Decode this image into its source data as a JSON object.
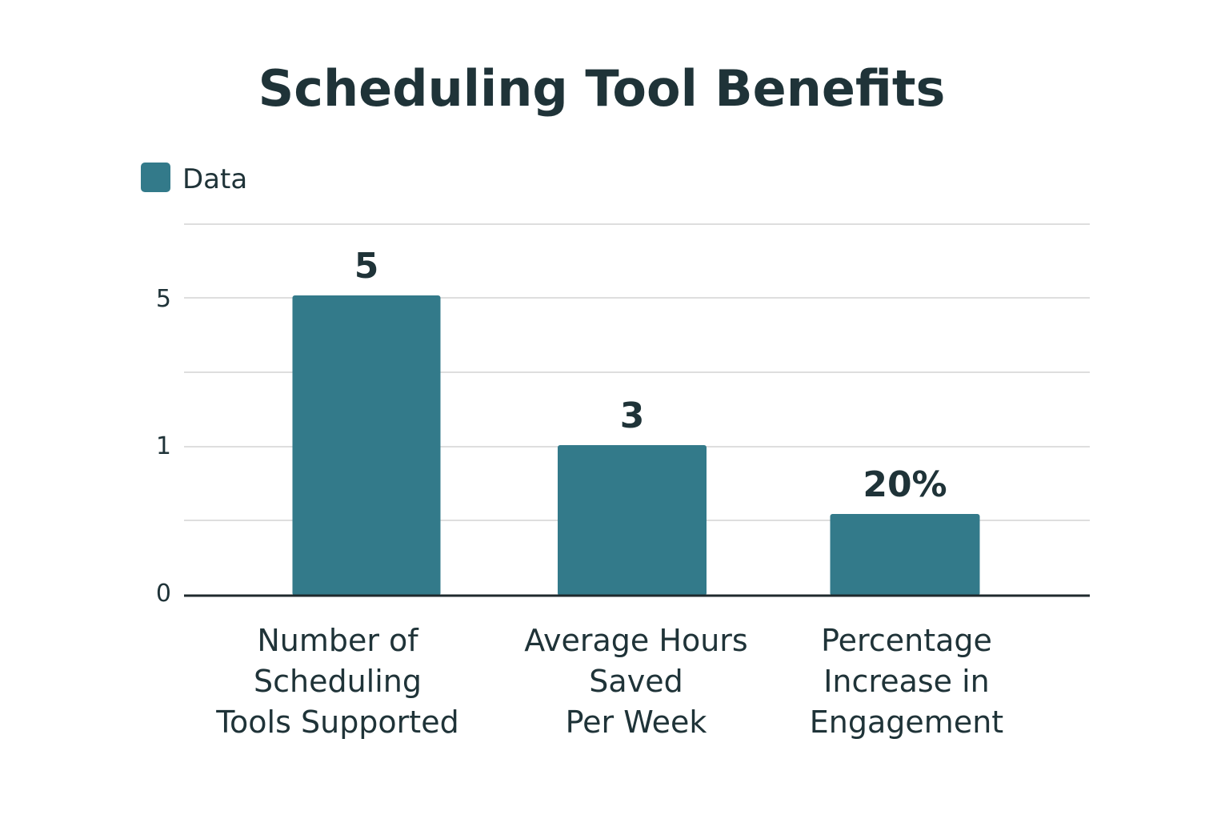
{
  "chart_data": {
    "type": "bar",
    "title": "Scheduling Tool Benefits",
    "xlabel": "",
    "ylabel": "",
    "legend": {
      "position": "top-left",
      "entries": [
        "Data"
      ]
    },
    "grid": true,
    "color": "#337a8a",
    "categories": [
      [
        "Number of",
        "Scheduling",
        "Tools Supported"
      ],
      [
        "Average Hours",
        "Saved",
        "Per Week"
      ],
      [
        "Percentage",
        "Increase in",
        "Engagement"
      ]
    ],
    "series": [
      {
        "name": "Data",
        "values": [
          5,
          3,
          20
        ],
        "labels": [
          "5",
          "3",
          "20%"
        ]
      }
    ],
    "y_tick_labels": [
      "0",
      "1",
      "5"
    ]
  }
}
